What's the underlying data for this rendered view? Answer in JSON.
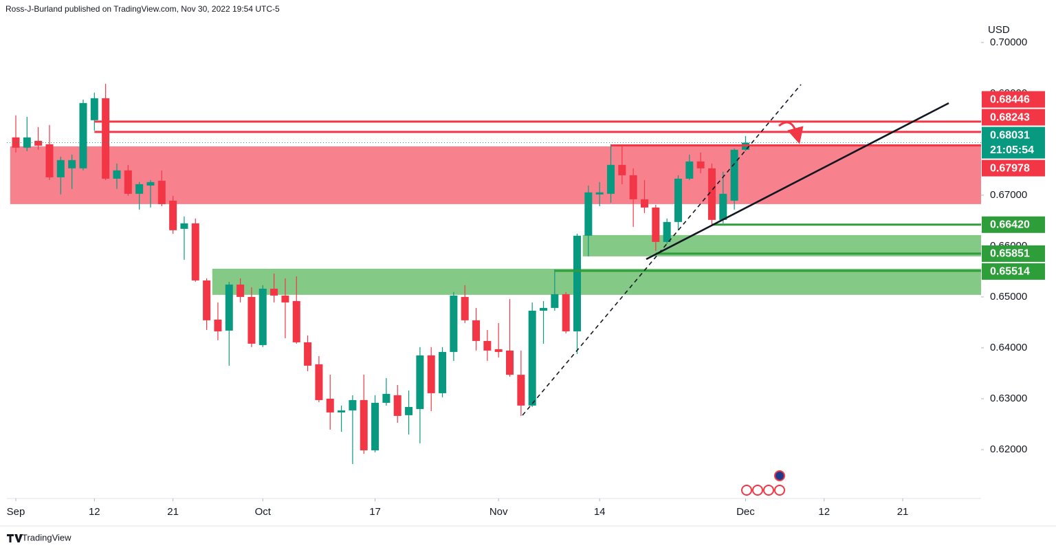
{
  "chart_data": {
    "type": "candlestick",
    "title": "Ross-J-Burland published on TradingView.com, Nov 30, 2022 19:54 UTC-5",
    "y_label": "USD",
    "brand": "TradingView",
    "categories": [
      "Sep 1",
      "Sep 2",
      "Sep 5",
      "Sep 6",
      "Sep 7",
      "Sep 8",
      "Sep 9",
      "Sep 12",
      "Sep 13",
      "Sep 14",
      "Sep 15",
      "Sep 16",
      "Sep 19",
      "Sep 20",
      "Sep 21",
      "Sep 22",
      "Sep 23",
      "Sep 26",
      "Sep 27",
      "Sep 28",
      "Sep 29",
      "Sep 30",
      "Oct 3",
      "Oct 4",
      "Oct 5",
      "Oct 6",
      "Oct 7",
      "Oct 10",
      "Oct 11",
      "Oct 12",
      "Oct 13",
      "Oct 14",
      "Oct 17",
      "Oct 18",
      "Oct 19",
      "Oct 20",
      "Oct 21",
      "Oct 24",
      "Oct 25",
      "Oct 26",
      "Oct 27",
      "Oct 28",
      "Oct 31",
      "Nov 1",
      "Nov 2",
      "Nov 3",
      "Nov 4",
      "Nov 7",
      "Nov 8",
      "Nov 9",
      "Nov 10",
      "Nov 11",
      "Nov 14",
      "Nov 15",
      "Nov 16",
      "Nov 17",
      "Nov 18",
      "Nov 21",
      "Nov 22",
      "Nov 23",
      "Nov 24",
      "Nov 25",
      "Nov 28",
      "Nov 29",
      "Nov 30",
      "Dec 1"
    ],
    "open": [
      0.68135,
      0.67933,
      0.68068,
      0.68,
      0.67351,
      0.67527,
      0.67527,
      0.68473,
      0.68905,
      0.67324,
      0.67487,
      0.67027,
      0.67189,
      0.67284,
      0.66892,
      0.66338,
      0.66446,
      0.65324,
      0.64554,
      0.64338,
      0.65243,
      0.65,
      0.64054,
      0.65162,
      0.65027,
      0.64919,
      0.64108,
      0.63676,
      0.63,
      0.6273,
      0.6277,
      0.62973,
      0.61986,
      0.62919,
      0.63068,
      0.62676,
      0.62797,
      0.63851,
      0.63108,
      0.63919,
      0.65,
      0.64541,
      0.64135,
      0.63973,
      0.63946,
      0.6347,
      0.62865,
      0.6473,
      0.64784,
      0.65054,
      0.64324,
      0.66203,
      0.67014,
      0.67027,
      0.67595,
      0.67392,
      0.66919,
      0.66757,
      0.66081,
      0.66473,
      0.67324,
      0.67662,
      0.67527,
      0.66514,
      0.66892,
      0.67892
    ],
    "high": [
      0.68568,
      0.6854,
      0.68338,
      0.68379,
      0.67757,
      0.67797,
      0.68878,
      0.69014,
      0.69189,
      0.67622,
      0.67595,
      0.67257,
      0.67297,
      0.67487,
      0.66987,
      0.66581,
      0.66541,
      0.65365,
      0.64892,
      0.65297,
      0.65365,
      0.65189,
      0.6523,
      0.65459,
      0.65365,
      0.65405,
      0.64243,
      0.63838,
      0.63473,
      0.62865,
      0.63068,
      0.63473,
      0.63068,
      0.63405,
      0.6327,
      0.63162,
      0.64014,
      0.64014,
      0.64014,
      0.65095,
      0.6523,
      0.64784,
      0.64351,
      0.64487,
      0.64959,
      0.63946,
      0.64892,
      0.64919,
      0.65541,
      0.65095,
      0.66243,
      0.67189,
      0.67257,
      0.68,
      0.67973,
      0.67527,
      0.67297,
      0.66811,
      0.66541,
      0.67392,
      0.67797,
      0.67838,
      0.67622,
      0.6746,
      0.67919,
      0.68162
    ],
    "low": [
      0.67838,
      0.67865,
      0.67892,
      0.67297,
      0.67014,
      0.67122,
      0.67487,
      0.6827,
      0.67297,
      0.67122,
      0.66987,
      0.66716,
      0.66757,
      0.66784,
      0.66243,
      0.6573,
      0.65297,
      0.64351,
      0.64149,
      0.63649,
      0.64892,
      0.64014,
      0.64014,
      0.64892,
      0.64189,
      0.64081,
      0.63541,
      0.62932,
      0.62392,
      0.62351,
      0.61716,
      0.61919,
      0.61946,
      0.62865,
      0.62527,
      0.62297,
      0.62122,
      0.62757,
      0.63027,
      0.63743,
      0.64487,
      0.63946,
      0.63743,
      0.63811,
      0.63432,
      0.62662,
      0.62838,
      0.64081,
      0.6473,
      0.64284,
      0.63878,
      0.65797,
      0.66784,
      0.66851,
      0.67216,
      0.66378,
      0.66649,
      0.65905,
      0.66041,
      0.66311,
      0.67297,
      0.67432,
      0.66405,
      0.66446,
      0.66716,
      0.67865
    ],
    "close": [
      0.67933,
      0.68135,
      0.67973,
      0.67351,
      0.67689,
      0.67689,
      0.68811,
      0.68905,
      0.67324,
      0.67487,
      0.67027,
      0.67216,
      0.67257,
      0.66824,
      0.66311,
      0.66446,
      0.65324,
      0.64541,
      0.64324,
      0.65243,
      0.65,
      0.64081,
      0.65162,
      0.65027,
      0.64892,
      0.64108,
      0.63649,
      0.62973,
      0.6273,
      0.6277,
      0.62973,
      0.61986,
      0.62919,
      0.63095,
      0.62662,
      0.62838,
      0.63851,
      0.63108,
      0.63919,
      0.65027,
      0.64541,
      0.64135,
      0.63946,
      0.63919,
      0.6347,
      0.62865,
      0.6473,
      0.64784,
      0.65054,
      0.64324,
      0.66203,
      0.67054,
      0.67054,
      0.67595,
      0.67392,
      0.66919,
      0.66757,
      0.66081,
      0.66473,
      0.67324,
      0.67662,
      0.67527,
      0.66514,
      0.67027,
      0.67892,
      0.68031
    ],
    "up_color": "#089981",
    "down_color": "#f23645",
    "ylim": [
      0.6104,
      0.7043
    ],
    "yticks": [
      {
        "value": 0.7,
        "label": "0.70000"
      },
      {
        "value": 0.69,
        "label": "0.69000"
      },
      {
        "value": 0.67,
        "label": "0.67000"
      },
      {
        "value": 0.66,
        "label": "0.66000"
      },
      {
        "value": 0.65,
        "label": "0.65000"
      },
      {
        "value": 0.64,
        "label": "0.64000"
      },
      {
        "value": 0.63,
        "label": "0.63000"
      },
      {
        "value": 0.62,
        "label": "0.62000"
      }
    ],
    "xticks": [
      {
        "value": "Sep 1",
        "label": "Sep"
      },
      {
        "value": "Sep 12",
        "label": "12"
      },
      {
        "value": "Sep 21",
        "label": "21"
      },
      {
        "value": "Oct 3",
        "label": "Oct"
      },
      {
        "value": "Oct 17",
        "label": "17"
      },
      {
        "value": "Nov 1",
        "label": "Nov"
      },
      {
        "value": "Nov 14",
        "label": "14"
      },
      {
        "value": "Dec 1",
        "label": "Dec"
      },
      {
        "value": "Dec 12",
        "label": "12"
      },
      {
        "value": "Dec 21",
        "label": "21"
      }
    ],
    "grid": false,
    "zones": [
      {
        "from": 0.66824,
        "to": 0.67959,
        "start": "Sep 1",
        "color": "#f7828d"
      },
      {
        "from": 0.65797,
        "to": 0.66216,
        "start": "Nov 11",
        "color": "#85c987"
      },
      {
        "from": 0.65041,
        "to": 0.65554,
        "start": "Sep 27",
        "color": "#85c987"
      }
    ],
    "levels": [
      {
        "value": 0.68446,
        "start": "Sep 12",
        "color": "#f23645"
      },
      {
        "value": 0.68243,
        "start": "Sep 12",
        "color": "#f23645"
      },
      {
        "value": 0.67978,
        "start": "Nov 15",
        "color": "#f23645"
      },
      {
        "value": 0.6642,
        "label": "0.66420",
        "start": "Nov 28",
        "color": "#2e9e3a"
      },
      {
        "value": 0.65851,
        "start": "Nov 21",
        "color": "#2e9e3a"
      },
      {
        "value": 0.65514,
        "start": "Nov 8",
        "color": "#2e9e3a"
      }
    ],
    "last_price": {
      "value": 0.68031,
      "countdown": "21:05:54",
      "color": "#089981"
    }
  }
}
